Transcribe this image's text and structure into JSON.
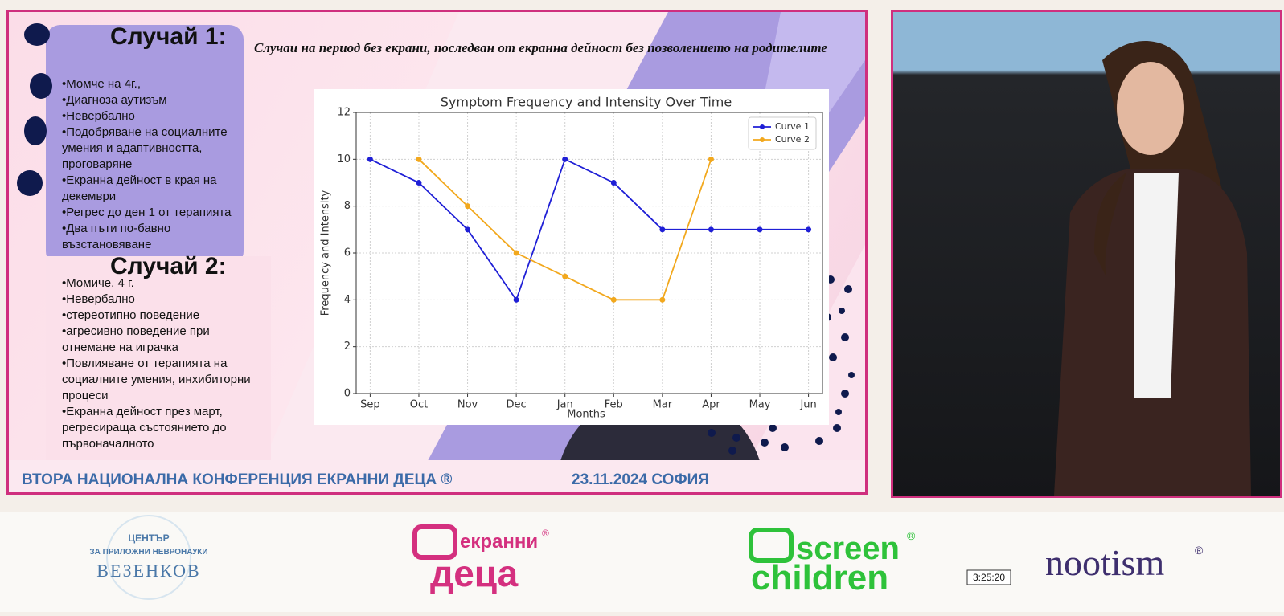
{
  "slide": {
    "case1": {
      "title": "Случай 1:",
      "items": [
        "•Момче на 4г.,",
        "•Диагноза аутизъм",
        "•Невербално",
        "•Подобряване на социалните умения и адаптивността, проговаряне",
        "•Екранна дейност в края на декември",
        "•Регрес до ден 1 от терапията",
        "•Два пъти по-бавно възстановяване"
      ]
    },
    "subtitle": "Случаи на период без екрани, последван от екранна дейност без позволението на родителите",
    "case2": {
      "title": "Случай 2:",
      "items": [
        "•Момиче, 4 г.",
        "•Невербално",
        "•стереотипно поведение",
        "•агресивно поведение при отнемане на играчка",
        "•Повлияване от терапията на социалните умения, инхибиторни процеси",
        "•Екранна дейност през март, регресираща състоянието до първоначалното"
      ]
    },
    "footer": {
      "conference": "ВТОРА НАЦИОНАЛНА КОНФЕРЕНЦИЯ ЕКРАННИ ДЕЦА ®",
      "date": "23.11.2024 СОФИЯ"
    }
  },
  "chart_data": {
    "type": "line",
    "title": "Symptom Frequency and Intensity Over Time",
    "x_label": "Months",
    "y_label": "Frequency and Intensity",
    "categories": [
      "Sep",
      "Oct",
      "Nov",
      "Dec",
      "Jan",
      "Feb",
      "Mar",
      "Apr",
      "May",
      "Jun"
    ],
    "series": [
      {
        "name": "Curve 1",
        "color": "#1f1fd6",
        "values": [
          10,
          9,
          7,
          4,
          10,
          9,
          7,
          7,
          7,
          7
        ]
      },
      {
        "name": "Curve 2",
        "color": "#f2a81d",
        "values": [
          null,
          10,
          8,
          6,
          5,
          4,
          4,
          10,
          null,
          null
        ]
      }
    ],
    "ylim": [
      0,
      12
    ],
    "yticks": [
      0,
      2,
      4,
      6,
      8,
      10,
      12
    ],
    "grid": true,
    "legend": "upper right"
  },
  "video": {
    "timestamp": "3:25:20"
  },
  "logos": {
    "vezenkov": {
      "line1": "ЦЕНТЪР",
      "line2": "ЗА ПРИЛОЖНИ НЕВРОНАУКИ",
      "line3": "ВЕЗЕНКОВ"
    },
    "ekranni_deca": {
      "top": "екранни",
      "bottom": "деца",
      "mark": "®"
    },
    "screen_children": {
      "top": "screen",
      "bottom": "children",
      "mark": "®"
    },
    "nootism": {
      "name": "nootism",
      "mark": "®"
    }
  }
}
